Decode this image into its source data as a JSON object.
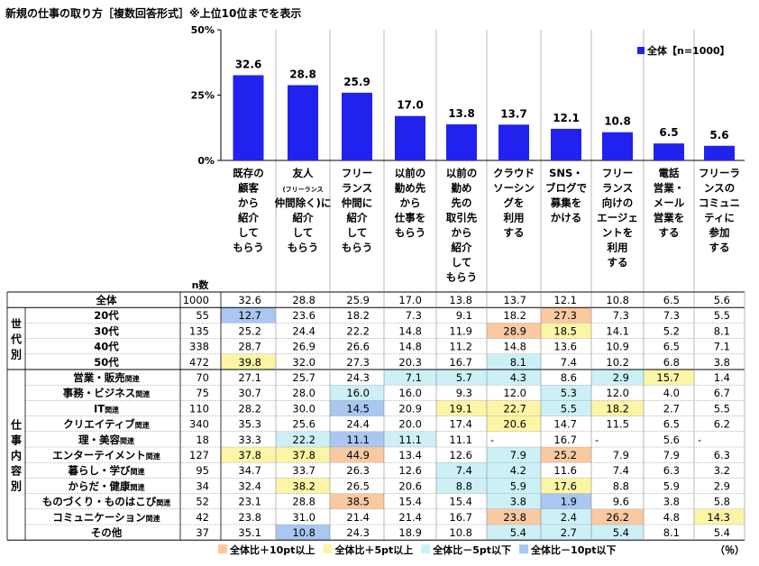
{
  "title": "新規の仕事の取り方［複数回答形式］※上位10位までを表示",
  "colors": {
    "bar": "#2222ee",
    "plus10": "#f9c9a2",
    "plus5": "#fdf5a6",
    "minus5": "#cdf0f7",
    "minus10": "#a9c7f0"
  },
  "chart_data": {
    "type": "bar",
    "title": "新規の仕事の取り方［複数回答形式］※上位10位までを表示",
    "ylim": [
      0,
      50
    ],
    "yticks": [
      "0%",
      "25%",
      "50%"
    ],
    "legend": "全体【n=1000】",
    "legend_position": "top-right",
    "categories": [
      "既存の顧客から紹介してもらう",
      "友人(フリーランス仲間除く)に紹介してもらう",
      "フリーランス仲間に紹介してもらう",
      "以前の勤め先から仕事をもらう",
      "以前の勤め先の取引先から紹介してもらう",
      "クラウドソーシングを利用する",
      "SNS・ブログで募集をかける",
      "フリーランス向けのエージェントを利用する",
      "電話営業・メール営業をする",
      "フリーランスのコミュニティに参加する"
    ],
    "series": [
      {
        "name": "全体【n=1000】",
        "values": [
          32.6,
          28.8,
          25.9,
          17.0,
          13.8,
          13.7,
          12.1,
          10.8,
          6.5,
          5.6
        ]
      }
    ],
    "value_labels": [
      "32.6",
      "28.8",
      "25.9",
      "17.0",
      "13.8",
      "13.7",
      "12.1",
      "10.8",
      "6.5",
      "5.6"
    ],
    "column_headers": [
      [
        "既存の",
        "顧客",
        "から",
        "紹介",
        "して",
        "もらう"
      ],
      [
        "友人",
        "(フリーランス",
        "仲間除く)に",
        "紹介",
        "して",
        "もらう"
      ],
      [
        "フリー",
        "ランス",
        "仲間に",
        "紹介",
        "して",
        "もらう"
      ],
      [
        "以前の",
        "勤め先",
        "から",
        "仕事を",
        "もらう"
      ],
      [
        "以前の",
        "勤め",
        "先の",
        "取引先",
        "から",
        "紹介",
        "して",
        "もらう"
      ],
      [
        "クラウド",
        "ソーシン",
        "グを",
        "利用",
        "する"
      ],
      [
        "SNS・",
        "ブログで",
        "募集を",
        "かける"
      ],
      [
        "フリー",
        "ランス",
        "向けの",
        "エージェ",
        "ントを",
        "利用",
        "する"
      ],
      [
        "電話",
        "営業・",
        "メール",
        "営業を",
        "する"
      ],
      [
        "フリーラ",
        "ンスの",
        "コミュニ",
        "ティに",
        "参加",
        "する"
      ]
    ],
    "n_label": "n数",
    "table": {
      "total": {
        "label": "全体",
        "n": "1000",
        "cells": [
          "32.6",
          "28.8",
          "25.9",
          "17.0",
          "13.8",
          "13.7",
          "12.1",
          "10.8",
          "6.5",
          "5.6"
        ]
      },
      "groups": [
        {
          "label": "世代別",
          "rows": [
            {
              "label": "20代",
              "suffix": "",
              "n": "55",
              "cells": [
                "12.7",
                "23.6",
                "18.2",
                "7.3",
                "9.1",
                "18.2",
                "27.3",
                "7.3",
                "7.3",
                "5.5"
              ],
              "hl": [
                "m10",
                "",
                "",
                "",
                "",
                "",
                "p10",
                "",
                "",
                ""
              ]
            },
            {
              "label": "30代",
              "suffix": "",
              "n": "135",
              "cells": [
                "25.2",
                "24.4",
                "22.2",
                "14.8",
                "11.9",
                "28.9",
                "18.5",
                "14.1",
                "5.2",
                "8.1"
              ],
              "hl": [
                "",
                "",
                "",
                "",
                "",
                "p10",
                "p5",
                "",
                "",
                ""
              ]
            },
            {
              "label": "40代",
              "suffix": "",
              "n": "338",
              "cells": [
                "28.7",
                "26.9",
                "26.6",
                "14.8",
                "11.2",
                "14.8",
                "13.6",
                "10.9",
                "6.5",
                "7.1"
              ],
              "hl": [
                "",
                "",
                "",
                "",
                "",
                "",
                "",
                "",
                "",
                ""
              ]
            },
            {
              "label": "50代",
              "suffix": "",
              "n": "472",
              "cells": [
                "39.8",
                "32.0",
                "27.3",
                "20.3",
                "16.7",
                "8.1",
                "7.4",
                "10.2",
                "6.8",
                "3.8"
              ],
              "hl": [
                "p5",
                "",
                "",
                "",
                "",
                "m5",
                "",
                "",
                "",
                ""
              ]
            }
          ]
        },
        {
          "label": "仕事内容別",
          "rows": [
            {
              "label": "営業・販売",
              "suffix": "関連",
              "n": "70",
              "cells": [
                "27.1",
                "25.7",
                "24.3",
                "7.1",
                "5.7",
                "4.3",
                "8.6",
                "2.9",
                "15.7",
                "1.4"
              ],
              "hl": [
                "",
                "",
                "",
                "m5",
                "m5",
                "m5",
                "",
                "m5",
                "p5",
                ""
              ]
            },
            {
              "label": "事務・ビジネス",
              "suffix": "関連",
              "n": "75",
              "cells": [
                "30.7",
                "28.0",
                "16.0",
                "16.0",
                "9.3",
                "12.0",
                "5.3",
                "12.0",
                "4.0",
                "6.7"
              ],
              "hl": [
                "",
                "",
                "m5",
                "",
                "",
                "",
                "m5",
                "",
                "",
                ""
              ]
            },
            {
              "label": "IT",
              "suffix": "関連",
              "n": "110",
              "cells": [
                "28.2",
                "30.0",
                "14.5",
                "20.9",
                "19.1",
                "22.7",
                "5.5",
                "18.2",
                "2.7",
                "5.5"
              ],
              "hl": [
                "",
                "",
                "m10",
                "",
                "p5",
                "p5",
                "m5",
                "p5",
                "",
                ""
              ]
            },
            {
              "label": "クリエイティブ",
              "suffix": "関連",
              "n": "340",
              "cells": [
                "35.3",
                "25.6",
                "24.4",
                "20.0",
                "17.4",
                "20.6",
                "14.7",
                "11.5",
                "6.5",
                "6.2"
              ],
              "hl": [
                "",
                "",
                "",
                "",
                "",
                "p5",
                "",
                "",
                "",
                ""
              ]
            },
            {
              "label": "理・美容",
              "suffix": "関連",
              "n": "18",
              "cells": [
                "33.3",
                "22.2",
                "11.1",
                "11.1",
                "11.1",
                "-",
                "16.7",
                "-",
                "5.6",
                "-"
              ],
              "hl": [
                "",
                "m5",
                "m10",
                "m5",
                "",
                "",
                "",
                "",
                "",
                ""
              ]
            },
            {
              "label": "エンターテイメント",
              "suffix": "関連",
              "n": "127",
              "cells": [
                "37.8",
                "37.8",
                "44.9",
                "13.4",
                "12.6",
                "7.9",
                "25.2",
                "7.9",
                "7.9",
                "6.3"
              ],
              "hl": [
                "p5",
                "p5",
                "p10",
                "",
                "",
                "m5",
                "p10",
                "",
                "",
                ""
              ]
            },
            {
              "label": "暮らし・学び",
              "suffix": "関連",
              "n": "95",
              "cells": [
                "34.7",
                "33.7",
                "26.3",
                "12.6",
                "7.4",
                "4.2",
                "11.6",
                "7.4",
                "6.3",
                "3.2"
              ],
              "hl": [
                "",
                "",
                "",
                "",
                "m5",
                "m5",
                "",
                "",
                "",
                ""
              ]
            },
            {
              "label": "からだ・健康",
              "suffix": "関連",
              "n": "34",
              "cells": [
                "32.4",
                "38.2",
                "26.5",
                "20.6",
                "8.8",
                "5.9",
                "17.6",
                "8.8",
                "5.9",
                "2.9"
              ],
              "hl": [
                "",
                "p5",
                "",
                "",
                "m5",
                "m5",
                "p5",
                "",
                "",
                ""
              ]
            },
            {
              "label": "ものづくり・ものはこび",
              "suffix": "関連",
              "n": "52",
              "cells": [
                "23.1",
                "28.8",
                "38.5",
                "15.4",
                "15.4",
                "3.8",
                "1.9",
                "9.6",
                "3.8",
                "5.8"
              ],
              "hl": [
                "",
                "",
                "p10",
                "",
                "",
                "m5",
                "m10",
                "",
                "",
                ""
              ]
            },
            {
              "label": "コミュニケーション",
              "suffix": "関連",
              "n": "42",
              "cells": [
                "23.8",
                "31.0",
                "21.4",
                "21.4",
                "16.7",
                "23.8",
                "2.4",
                "26.2",
                "4.8",
                "14.3"
              ],
              "hl": [
                "",
                "",
                "",
                "",
                "",
                "p10",
                "m5",
                "p10",
                "",
                "p5"
              ]
            },
            {
              "label": "その他",
              "suffix": "",
              "n": "37",
              "cells": [
                "35.1",
                "10.8",
                "24.3",
                "18.9",
                "10.8",
                "5.4",
                "2.7",
                "5.4",
                "8.1",
                "5.4"
              ],
              "hl": [
                "",
                "m10",
                "",
                "",
                "",
                "m5",
                "m5",
                "m5",
                "",
                ""
              ]
            }
          ]
        }
      ]
    },
    "highlight_legend": [
      {
        "key": "p10",
        "label": "全体比＋10pt以上"
      },
      {
        "key": "p5",
        "label": "全体比＋5pt以上"
      },
      {
        "key": "m5",
        "label": "全体比－5pt以下"
      },
      {
        "key": "m10",
        "label": "全体比－10pt以下"
      }
    ],
    "unit_label": "（％）"
  }
}
